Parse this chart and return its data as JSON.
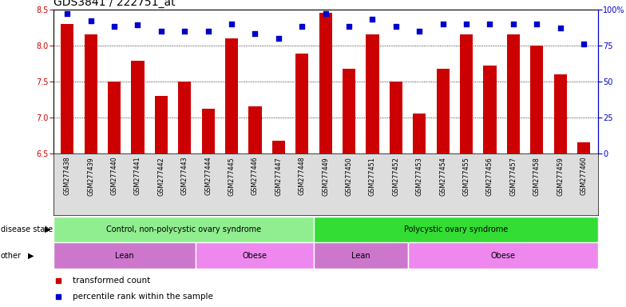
{
  "title": "GDS3841 / 222751_at",
  "samples": [
    "GSM277438",
    "GSM277439",
    "GSM277440",
    "GSM277441",
    "GSM277442",
    "GSM277443",
    "GSM277444",
    "GSM277445",
    "GSM277446",
    "GSM277447",
    "GSM277448",
    "GSM277449",
    "GSM277450",
    "GSM277451",
    "GSM277452",
    "GSM277453",
    "GSM277454",
    "GSM277455",
    "GSM277456",
    "GSM277457",
    "GSM277458",
    "GSM277459",
    "GSM277460"
  ],
  "red_values": [
    8.3,
    8.15,
    7.5,
    7.78,
    7.3,
    7.5,
    7.12,
    8.1,
    7.15,
    6.68,
    7.88,
    8.45,
    7.68,
    8.15,
    7.5,
    7.05,
    7.68,
    8.15,
    7.72,
    8.15,
    8.0,
    7.6,
    6.65
  ],
  "blue_values": [
    97,
    92,
    88,
    89,
    85,
    85,
    85,
    90,
    83,
    80,
    88,
    97,
    88,
    93,
    88,
    85,
    90,
    90,
    90,
    90,
    90,
    87,
    76
  ],
  "ylim_left": [
    6.5,
    8.5
  ],
  "ylim_right": [
    0,
    100
  ],
  "yticks_left": [
    6.5,
    7.0,
    7.5,
    8.0,
    8.5
  ],
  "yticks_right": [
    0,
    25,
    50,
    75,
    100
  ],
  "ytick_labels_right": [
    "0",
    "25",
    "50",
    "75",
    "100%"
  ],
  "bar_color": "#cc0000",
  "dot_color": "#0000cc",
  "disease_state_groups": [
    {
      "label": "Control, non-polycystic ovary syndrome",
      "start": 0,
      "end": 11,
      "color": "#90ee90"
    },
    {
      "label": "Polycystic ovary syndrome",
      "start": 11,
      "end": 23,
      "color": "#33dd33"
    }
  ],
  "other_groups": [
    {
      "label": "Lean",
      "start": 0,
      "end": 6,
      "color": "#cc77cc"
    },
    {
      "label": "Obese",
      "start": 6,
      "end": 11,
      "color": "#ee88ee"
    },
    {
      "label": "Lean",
      "start": 11,
      "end": 15,
      "color": "#cc77cc"
    },
    {
      "label": "Obese",
      "start": 15,
      "end": 23,
      "color": "#ee88ee"
    }
  ],
  "legend_items": [
    {
      "label": "transformed count",
      "color": "#cc0000"
    },
    {
      "label": "percentile rank within the sample",
      "color": "#0000cc"
    }
  ],
  "disease_state_label": "disease state",
  "other_label": "other",
  "plot_bg": "#ffffff",
  "xtick_bg": "#dddddd",
  "title_fontsize": 10,
  "tick_fontsize": 7,
  "annotation_fontsize": 7,
  "gridline_values": [
    7.0,
    7.5,
    8.0
  ]
}
